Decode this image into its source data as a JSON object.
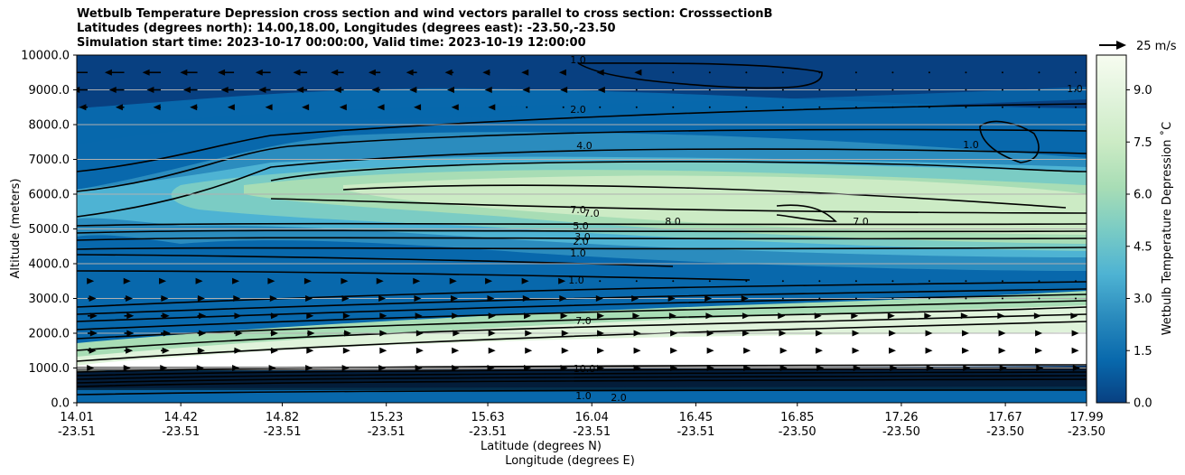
{
  "title_lines": [
    "Wetbulb Temperature Depression cross section and wind vectors parallel to cross section: CrosssectionB",
    "Latitudes (degrees north): 14.00,18.00, Longitudes (degrees east): -23.50,-23.50",
    "Simulation start time: 2023-10-17 00:00:00, Valid time: 2023-10-19 12:00:00"
  ],
  "chart_data": {
    "type": "heatmap",
    "subtype": "filled-contour cross section with contour lines and wind vectors",
    "ylabel": "Altitude (meters)",
    "xlabel_lines": [
      "Latitude (degrees N)",
      "Longitude (degrees E)"
    ],
    "ylim": [
      0,
      10000
    ],
    "yticks": [
      "0.0",
      "1000.0",
      "2000.0",
      "3000.0",
      "4000.0",
      "5000.0",
      "6000.0",
      "7000.0",
      "8000.0",
      "9000.0",
      "10000.0"
    ],
    "xticks": [
      {
        "lat": "14.01",
        "lon": "-23.51"
      },
      {
        "lat": "14.42",
        "lon": "-23.51"
      },
      {
        "lat": "14.82",
        "lon": "-23.51"
      },
      {
        "lat": "15.23",
        "lon": "-23.51"
      },
      {
        "lat": "15.63",
        "lon": "-23.51"
      },
      {
        "lat": "16.04",
        "lon": "-23.51"
      },
      {
        "lat": "16.45",
        "lon": "-23.51"
      },
      {
        "lat": "16.85",
        "lon": "-23.50"
      },
      {
        "lat": "17.26",
        "lon": "-23.50"
      },
      {
        "lat": "17.67",
        "lon": "-23.50"
      },
      {
        "lat": "17.99",
        "lon": "-23.50"
      }
    ],
    "grid": "horizontal",
    "colorbar": {
      "label": "Wetbulb Temperature Depression ˚C",
      "range": [
        0,
        10
      ],
      "ticks": [
        "0.0",
        "1.5",
        "3.0",
        "4.5",
        "6.0",
        "7.5",
        "9.0"
      ],
      "colormap": "GnBu_r"
    },
    "wind_key": "25 m/s",
    "contour_labels": [
      "1.0",
      "2.0",
      "4.0",
      "7.0",
      "7.0",
      "5.0",
      "3.0",
      "2.0",
      "1.0",
      "1.0",
      "7.0",
      "8.0",
      "7.0",
      "1.0",
      "1.0",
      "10.0",
      "1.0",
      "2.0"
    ],
    "wind_rows": [
      {
        "altitude": 9500,
        "u": [
          -18,
          -18,
          -17,
          -16,
          -15,
          -14,
          -13,
          -12,
          -11,
          -10,
          -8,
          -7,
          -5,
          -4,
          -3,
          -2,
          -1,
          -1,
          0,
          0,
          0,
          0,
          0,
          0,
          0,
          0,
          0,
          0
        ]
      },
      {
        "altitude": 9000,
        "u": [
          -14,
          -14,
          -13,
          -13,
          -12,
          -11,
          -10,
          -9,
          -8,
          -7,
          -6,
          -5,
          -4,
          -3,
          -2,
          -1,
          -1,
          0,
          0,
          0,
          0,
          0,
          0,
          0,
          0,
          0,
          0,
          0
        ]
      },
      {
        "altitude": 8500,
        "u": [
          -8,
          -8,
          -7,
          -7,
          -6,
          -5,
          -5,
          -4,
          -3,
          -3,
          -2,
          -2,
          -1,
          -1,
          0,
          0,
          0,
          0,
          0,
          0,
          0,
          0,
          0,
          0,
          0,
          0,
          0,
          0
        ]
      },
      {
        "altitude": 3500,
        "u": [
          6,
          6,
          5,
          5,
          5,
          4,
          4,
          4,
          3,
          3,
          3,
          2,
          2,
          2,
          1,
          1,
          1,
          1,
          0,
          0,
          0,
          0,
          0,
          0,
          0,
          0,
          0,
          0
        ]
      },
      {
        "altitude": 3000,
        "u": [
          8,
          8,
          7,
          7,
          6,
          6,
          5,
          5,
          5,
          4,
          4,
          4,
          3,
          3,
          3,
          2,
          2,
          2,
          2,
          1,
          1,
          1,
          1,
          1,
          1,
          1,
          1,
          1
        ]
      },
      {
        "altitude": 2500,
        "u": [
          9,
          9,
          8,
          8,
          7,
          7,
          6,
          6,
          6,
          5,
          5,
          5,
          4,
          4,
          4,
          3,
          3,
          3,
          3,
          2,
          2,
          2,
          2,
          2,
          2,
          2,
          2,
          2
        ]
      },
      {
        "altitude": 2000,
        "u": [
          9,
          9,
          9,
          8,
          8,
          7,
          7,
          7,
          6,
          6,
          6,
          5,
          5,
          5,
          4,
          4,
          4,
          4,
          3,
          3,
          3,
          3,
          3,
          3,
          3,
          3,
          3,
          3
        ]
      },
      {
        "altitude": 1500,
        "u": [
          8,
          8,
          8,
          7,
          7,
          7,
          6,
          6,
          6,
          6,
          5,
          5,
          5,
          5,
          4,
          4,
          4,
          4,
          4,
          4,
          3,
          3,
          3,
          3,
          3,
          3,
          3,
          3
        ]
      },
      {
        "altitude": 1000,
        "u": [
          6,
          6,
          6,
          6,
          5,
          5,
          5,
          5,
          5,
          5,
          5,
          4,
          4,
          4,
          4,
          4,
          4,
          4,
          4,
          4,
          4,
          4,
          4,
          4,
          4,
          4,
          4,
          4
        ]
      }
    ]
  }
}
